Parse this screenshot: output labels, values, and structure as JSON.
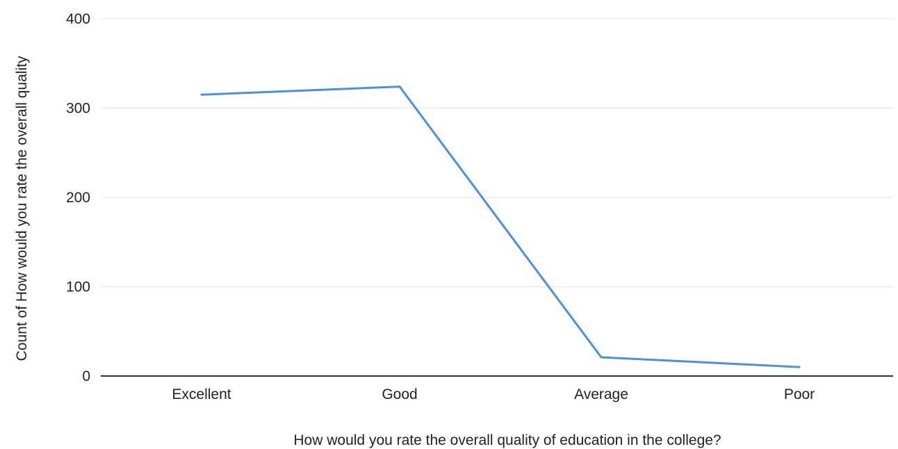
{
  "chart_data": {
    "type": "line",
    "title": "",
    "xlabel": "How would you rate the overall quality of education in the college?",
    "ylabel": "Count of How would you rate the overall quality",
    "categories": [
      "Excellent",
      "Good",
      "Average",
      "Poor"
    ],
    "series": [
      {
        "values": [
          315,
          324,
          21,
          10
        ],
        "color": "#4a90e2"
      }
    ],
    "ylim": [
      0,
      400
    ],
    "yticks": [
      "0",
      "100",
      "200",
      "300",
      "400"
    ],
    "grid": true,
    "legend": "none"
  }
}
